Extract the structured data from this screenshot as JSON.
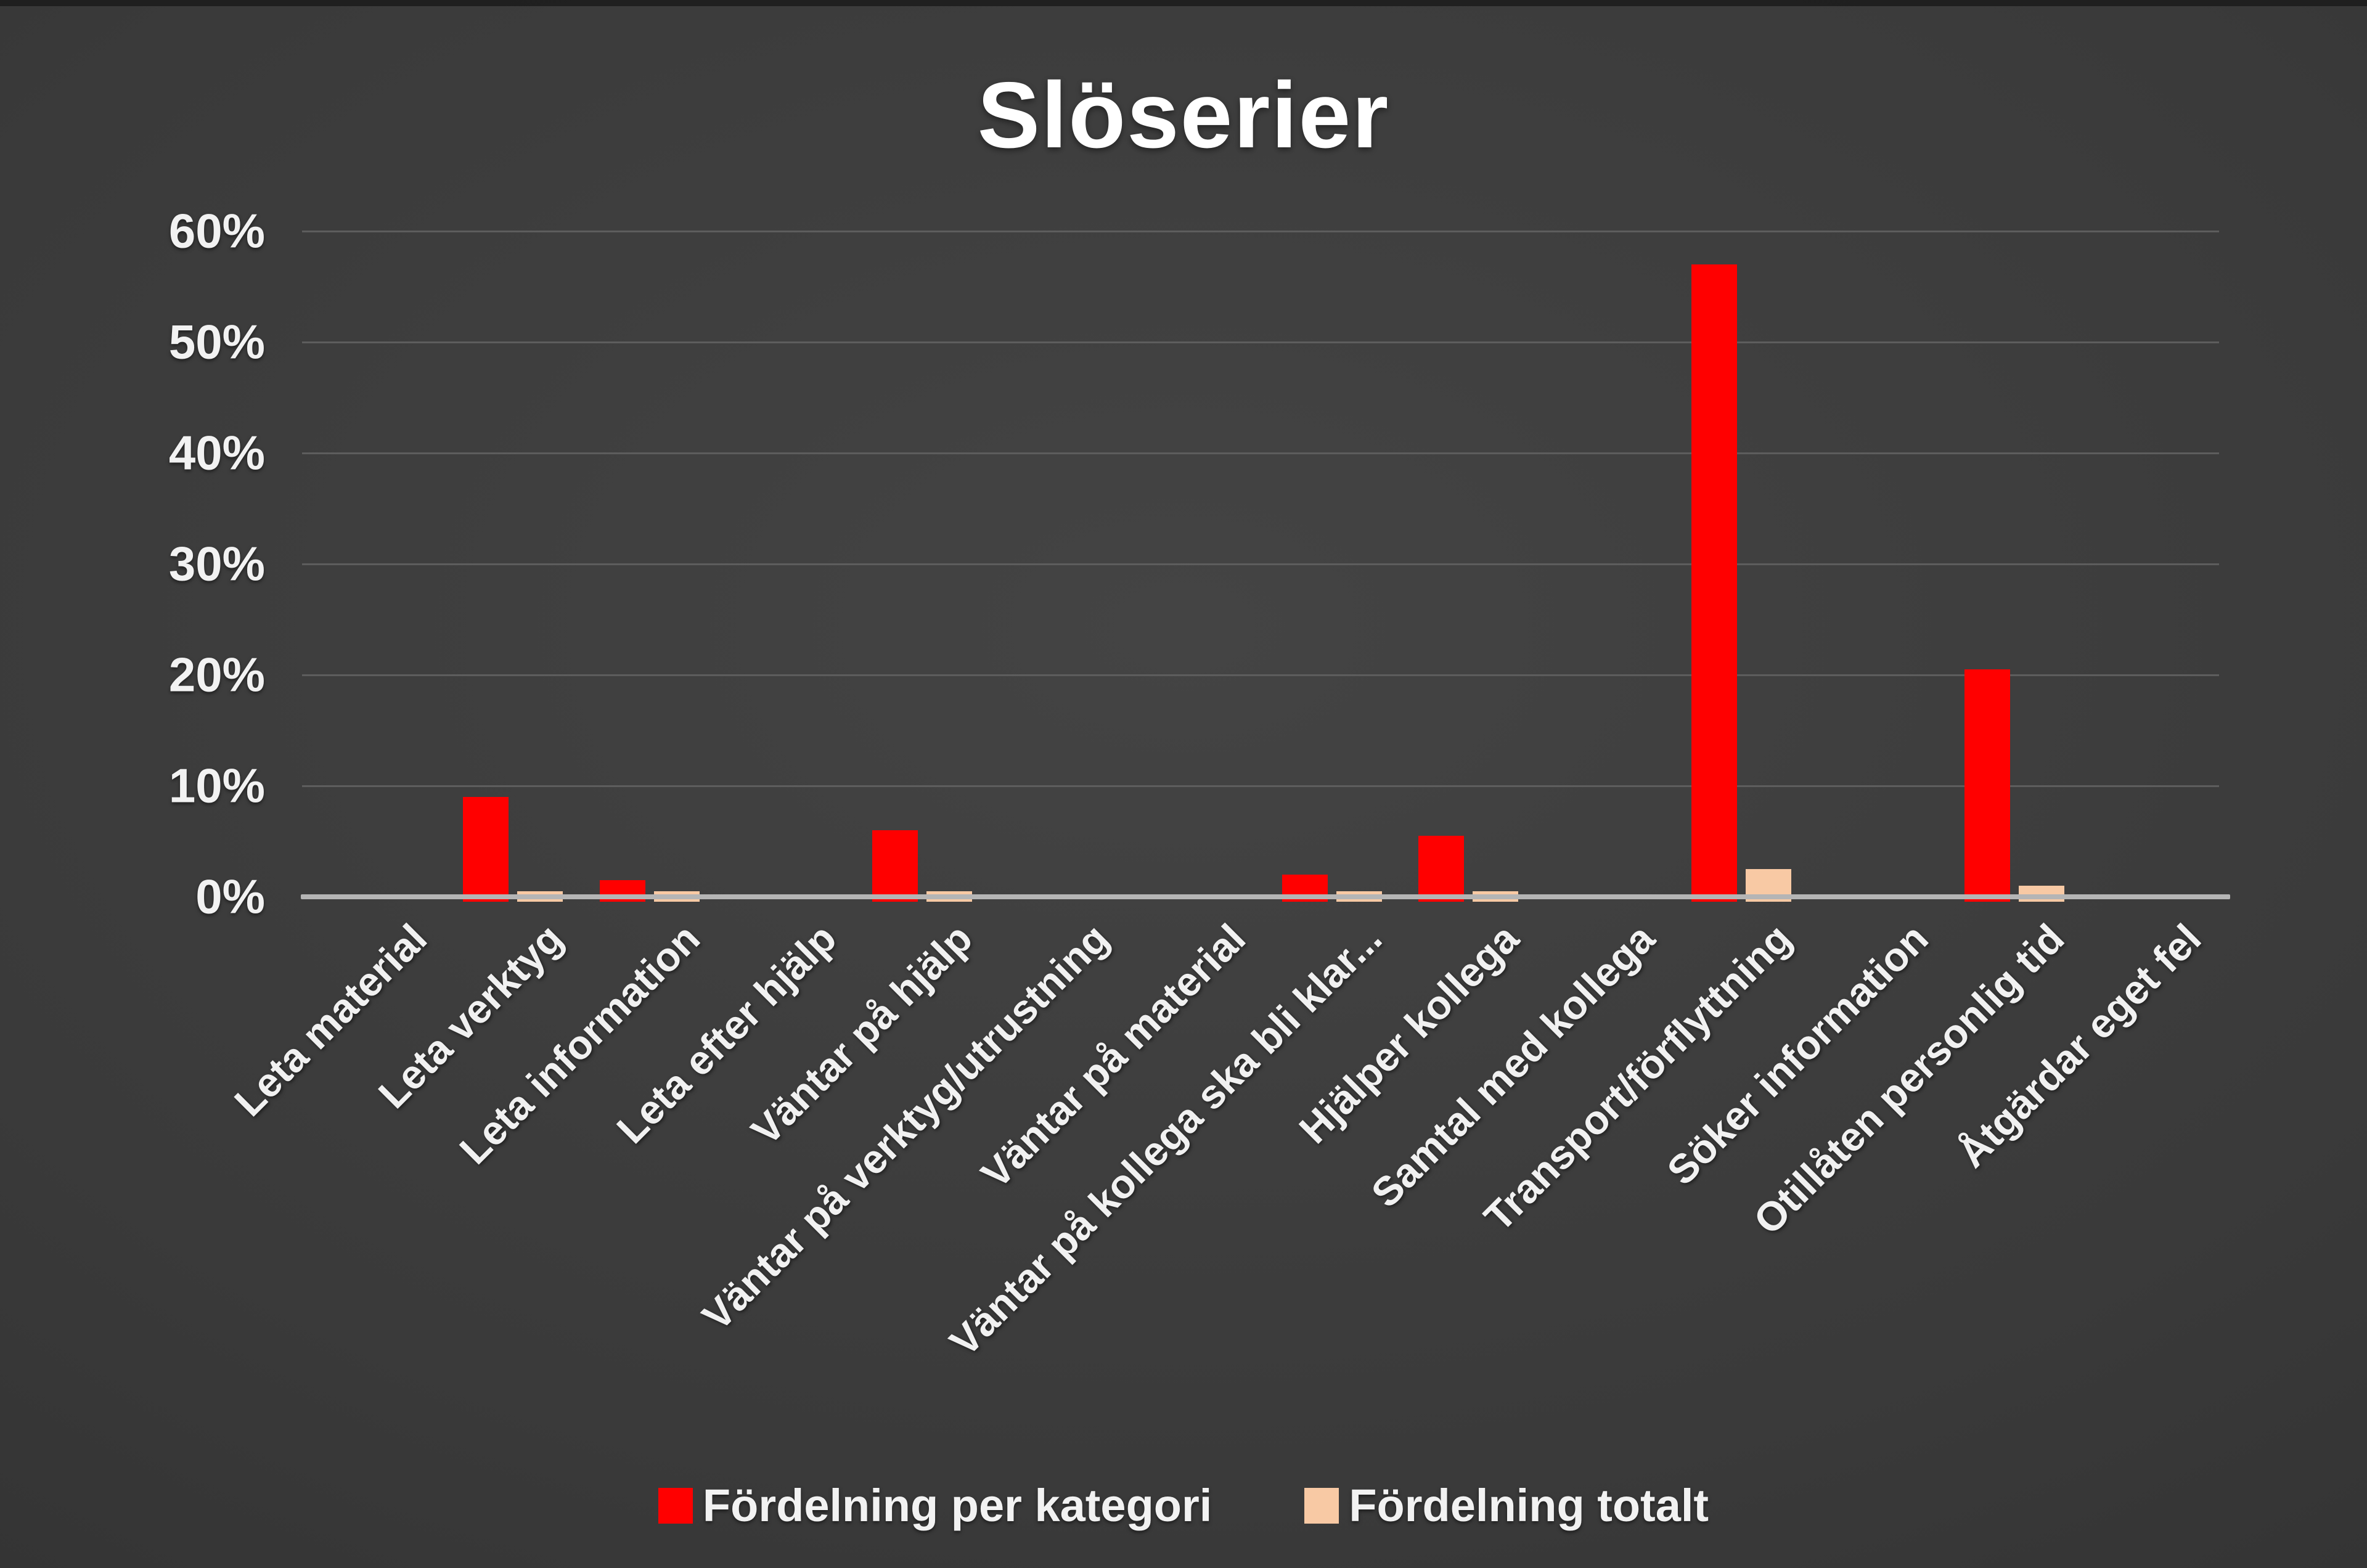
{
  "chart_data": {
    "type": "bar",
    "title": "Slöserier",
    "categories": [
      "Leta material",
      "Leta verktyg",
      "Leta information",
      "Leta efter hjälp",
      "Väntar på hjälp",
      "Väntar på verktyg/utrustning",
      "Väntar på material",
      "Väntar på kollega ska bli klar...",
      "Hjälper kollega",
      "Samtal med kollega",
      "Transport/förflyttning",
      "Söker information",
      "Otillåten personlig tid",
      "Åtgärdar eget fel"
    ],
    "series": [
      {
        "name": "Fördelning per kategori",
        "color": "#FF0000",
        "values": [
          0,
          9,
          1.5,
          0,
          6,
          0,
          0,
          2,
          5.5,
          0,
          57,
          0,
          20.5,
          0
        ]
      },
      {
        "name": "Fördelning totalt",
        "color": "#F8C9A4",
        "values": [
          0,
          0.5,
          0.5,
          0,
          0.5,
          0,
          0,
          0.5,
          0.5,
          0,
          2.5,
          0,
          1,
          0
        ]
      }
    ],
    "y_ticks": [
      "0%",
      "10%",
      "20%",
      "30%",
      "40%",
      "50%",
      "60%"
    ],
    "ylim": [
      0,
      60
    ],
    "xlabel": "",
    "ylabel": "",
    "grid": true,
    "legend_position": "bottom",
    "colors": {
      "background": "#3a3a3a",
      "gridline": "#5d5d5d",
      "axis_line": "#b5b5b5",
      "text": "#f2f2f2"
    }
  }
}
